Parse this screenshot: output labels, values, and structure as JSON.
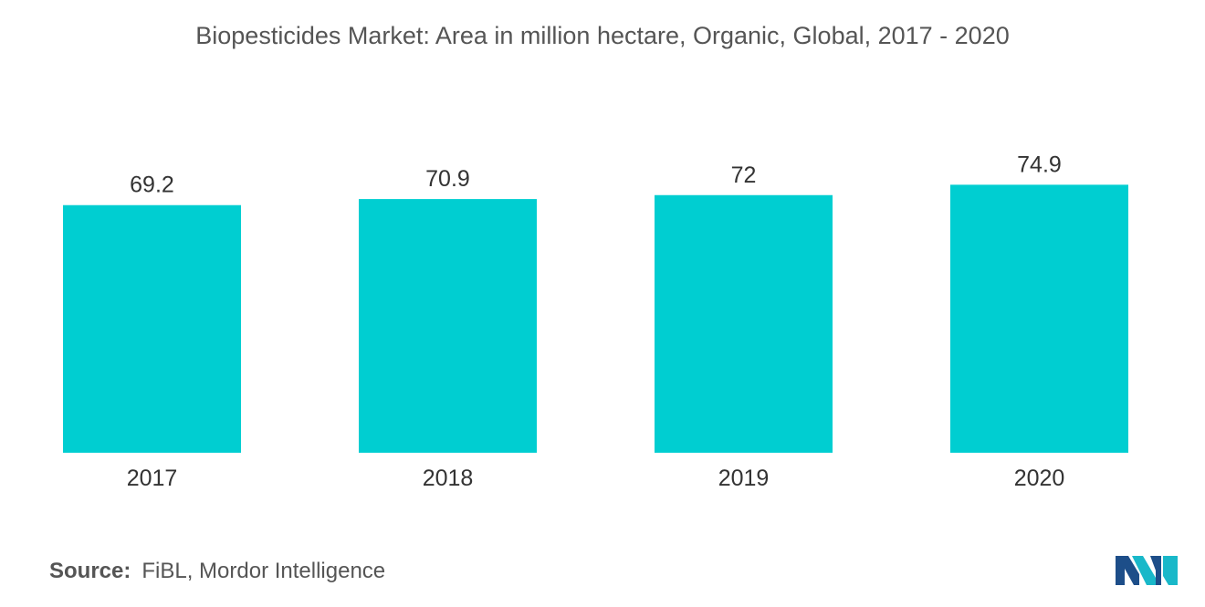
{
  "chart_data": {
    "type": "bar",
    "title": "Biopesticides Market: Area in million hectare, Organic, Global, 2017 - 2020",
    "categories": [
      "2017",
      "2018",
      "2019",
      "2020"
    ],
    "values": [
      69.2,
      70.9,
      72,
      74.9
    ],
    "value_labels": [
      "69.2",
      "70.9",
      "72",
      "74.9"
    ],
    "xlabel": "",
    "ylabel": "",
    "ylim": [
      0,
      100
    ],
    "grid": false,
    "legend": "none",
    "bar_color": "#00CED1"
  },
  "source": {
    "label": "Source:",
    "text": "FiBL, Mordor Intelligence"
  },
  "logo": {
    "icon": "mordor-intelligence-logo-icon",
    "colors": [
      "#1d4e89",
      "#19b8c9"
    ]
  }
}
